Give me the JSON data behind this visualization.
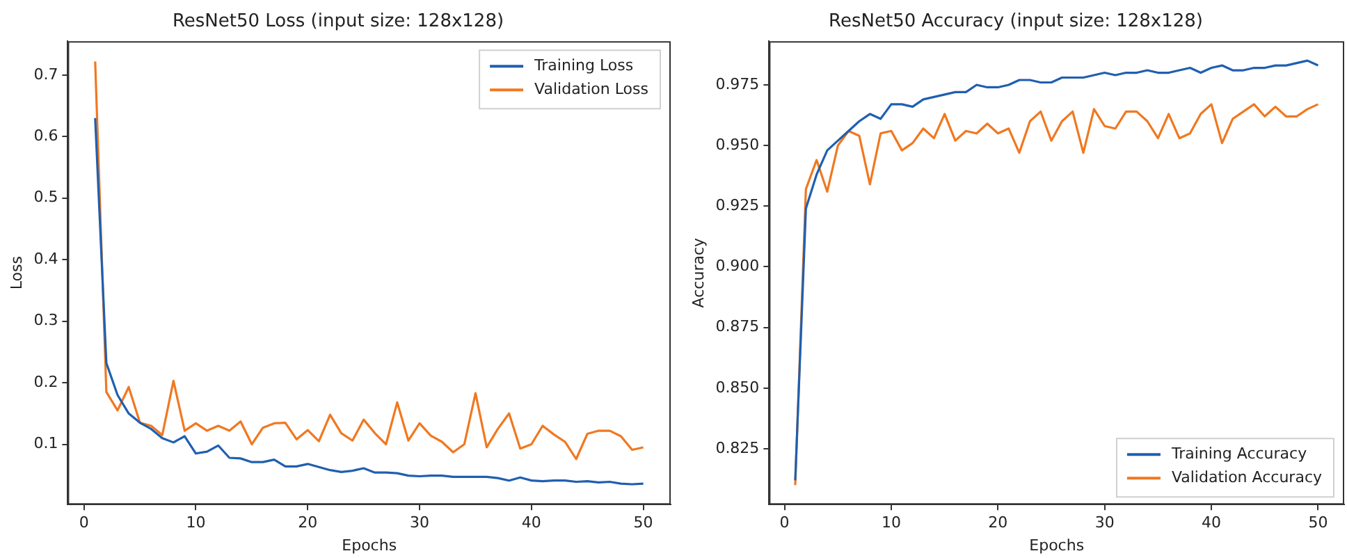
{
  "chart_data": [
    {
      "type": "line",
      "title": "ResNet50 Loss (input size: 128x128)",
      "xlabel": "Epochs",
      "ylabel": "Loss",
      "x": [
        1,
        2,
        3,
        4,
        5,
        6,
        7,
        8,
        9,
        10,
        11,
        12,
        13,
        14,
        15,
        16,
        17,
        18,
        19,
        20,
        21,
        22,
        23,
        24,
        25,
        26,
        27,
        28,
        29,
        30,
        31,
        32,
        33,
        34,
        35,
        36,
        37,
        38,
        39,
        40,
        41,
        42,
        43,
        44,
        45,
        46,
        47,
        48,
        49,
        50
      ],
      "xlim": [
        -1.45,
        52.45
      ],
      "xticks": [
        0,
        10,
        20,
        30,
        40,
        50
      ],
      "ylim": [
        0.002,
        0.755
      ],
      "yticks": [
        0.1,
        0.2,
        0.3,
        0.4,
        0.5,
        0.6,
        0.7
      ],
      "grid": false,
      "legend": "top right",
      "marker": "none",
      "line_style": "solid",
      "series": [
        {
          "name": "Training Loss",
          "color": "#1f5fb0",
          "values": [
            0.63,
            0.232,
            0.18,
            0.15,
            0.135,
            0.125,
            0.11,
            0.103,
            0.113,
            0.085,
            0.088,
            0.098,
            0.078,
            0.077,
            0.071,
            0.071,
            0.075,
            0.064,
            0.064,
            0.068,
            0.063,
            0.058,
            0.055,
            0.057,
            0.061,
            0.054,
            0.054,
            0.053,
            0.049,
            0.048,
            0.049,
            0.049,
            0.047,
            0.047,
            0.047,
            0.047,
            0.045,
            0.041,
            0.046,
            0.041,
            0.04,
            0.041,
            0.041,
            0.039,
            0.04,
            0.038,
            0.039,
            0.036,
            0.035,
            0.036
          ]
        },
        {
          "name": "Validation Loss",
          "color": "#f07820",
          "values": [
            0.722,
            0.185,
            0.155,
            0.193,
            0.135,
            0.13,
            0.115,
            0.203,
            0.122,
            0.134,
            0.122,
            0.13,
            0.122,
            0.137,
            0.1,
            0.127,
            0.134,
            0.135,
            0.108,
            0.123,
            0.105,
            0.148,
            0.118,
            0.106,
            0.14,
            0.118,
            0.1,
            0.168,
            0.106,
            0.134,
            0.114,
            0.104,
            0.087,
            0.1,
            0.183,
            0.095,
            0.125,
            0.15,
            0.093,
            0.1,
            0.13,
            0.116,
            0.104,
            0.076,
            0.117,
            0.122,
            0.122,
            0.113,
            0.091,
            0.095
          ]
        }
      ]
    },
    {
      "type": "line",
      "title": "ResNet50 Accuracy (input size: 128x128)",
      "xlabel": "Epochs",
      "ylabel": "Accuracy",
      "x": [
        1,
        2,
        3,
        4,
        5,
        6,
        7,
        8,
        9,
        10,
        11,
        12,
        13,
        14,
        15,
        16,
        17,
        18,
        19,
        20,
        21,
        22,
        23,
        24,
        25,
        26,
        27,
        28,
        29,
        30,
        31,
        32,
        33,
        34,
        35,
        36,
        37,
        38,
        39,
        40,
        41,
        42,
        43,
        44,
        45,
        46,
        47,
        48,
        49,
        50
      ],
      "xlim": [
        -1.45,
        52.45
      ],
      "xticks": [
        0,
        10,
        20,
        30,
        40,
        50
      ],
      "ylim": [
        0.802,
        0.993
      ],
      "yticks": [
        {
          "value": 0.825,
          "label": "0.825"
        },
        {
          "value": 0.85,
          "label": "0.850"
        },
        {
          "value": 0.875,
          "label": "0.875"
        },
        {
          "value": 0.9,
          "label": "0.900"
        },
        {
          "value": 0.925,
          "label": "0.925"
        },
        {
          "value": 0.95,
          "label": "0.950"
        },
        {
          "value": 0.975,
          "label": "0.975"
        }
      ],
      "grid": false,
      "legend": "bottom right",
      "marker": "none",
      "line_style": "solid",
      "series": [
        {
          "name": "Training Accuracy",
          "color": "#1f5fb0",
          "values": [
            0.812,
            0.924,
            0.938,
            0.948,
            0.952,
            0.956,
            0.96,
            0.963,
            0.961,
            0.967,
            0.967,
            0.966,
            0.969,
            0.97,
            0.971,
            0.972,
            0.972,
            0.975,
            0.974,
            0.974,
            0.975,
            0.977,
            0.977,
            0.976,
            0.976,
            0.978,
            0.978,
            0.978,
            0.979,
            0.98,
            0.979,
            0.98,
            0.98,
            0.981,
            0.98,
            0.98,
            0.981,
            0.982,
            0.98,
            0.982,
            0.983,
            0.981,
            0.981,
            0.982,
            0.982,
            0.983,
            0.983,
            0.984,
            0.985,
            0.983
          ]
        },
        {
          "name": "Validation Accuracy",
          "color": "#f07820",
          "values": [
            0.81,
            0.932,
            0.944,
            0.931,
            0.95,
            0.956,
            0.954,
            0.934,
            0.955,
            0.956,
            0.948,
            0.951,
            0.957,
            0.953,
            0.963,
            0.952,
            0.956,
            0.955,
            0.959,
            0.955,
            0.957,
            0.947,
            0.96,
            0.964,
            0.952,
            0.96,
            0.964,
            0.947,
            0.965,
            0.958,
            0.957,
            0.964,
            0.964,
            0.96,
            0.953,
            0.963,
            0.953,
            0.955,
            0.963,
            0.967,
            0.951,
            0.961,
            0.964,
            0.967,
            0.962,
            0.966,
            0.962,
            0.962,
            0.965,
            0.967
          ]
        }
      ]
    }
  ]
}
